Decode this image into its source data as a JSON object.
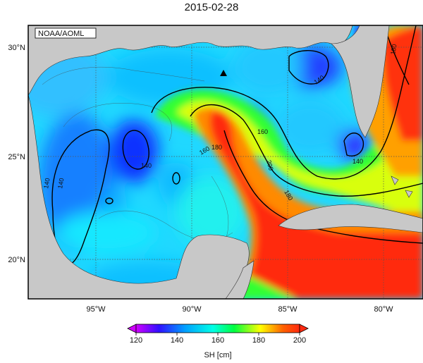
{
  "title": "2015-02-28",
  "credit": "NOAA/AOML",
  "lon_ticks": [
    "95°W",
    "90°W",
    "85°W",
    "80°W"
  ],
  "lat_ticks": [
    "30°N",
    "25°N",
    "20°N"
  ],
  "contour_labels": [
    "140",
    "140",
    "140",
    "140",
    "140",
    "160",
    "160",
    "180",
    "180",
    "180",
    "200"
  ],
  "colorbar": {
    "label": "SH [cm]",
    "ticks": [
      "120",
      "140",
      "160",
      "180",
      "200"
    ],
    "min": 120,
    "max": 200,
    "stops": [
      "#d000ff",
      "#3010ff",
      "#00a0ff",
      "#00ffe6",
      "#00ff40",
      "#ffff00",
      "#ff6000",
      "#ff2a10"
    ]
  },
  "colors": {
    "land": "#c8c8c8",
    "frame": "#000000",
    "grid": "#555555"
  },
  "marker": "triangle-marker"
}
